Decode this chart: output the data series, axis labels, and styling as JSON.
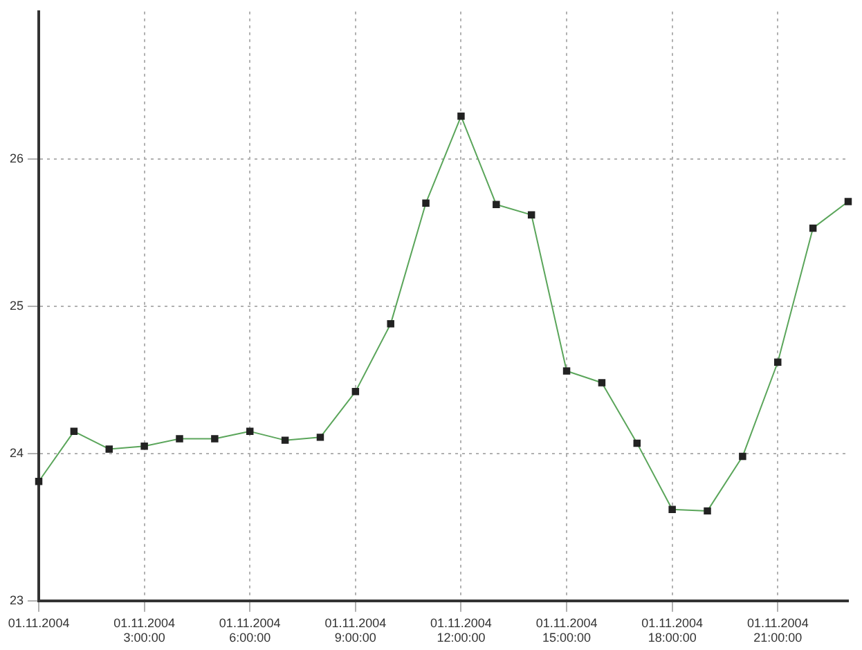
{
  "chart_data": {
    "type": "line",
    "categories": [
      "01.11.2004",
      null,
      null,
      "01.11.2004\n3:00:00",
      null,
      null,
      "01.11.2004\n6:00:00",
      null,
      null,
      "01.11.2004\n9:00:00",
      null,
      null,
      "01.11.2004\n12:00:00",
      null,
      null,
      "01.11.2004\n15:00:00",
      null,
      null,
      "01.11.2004\n18:00:00",
      null,
      null,
      "01.11.2004\n21:00:00",
      null,
      null
    ],
    "series": [
      {
        "color": "#5aa55a",
        "values": [
          23.81,
          24.15,
          24.03,
          24.05,
          24.1,
          24.1,
          24.15,
          24.09,
          24.11,
          24.42,
          24.88,
          25.7,
          26.29,
          25.69,
          25.62,
          24.56,
          24.48,
          24.07,
          23.62,
          23.61,
          23.98,
          24.62,
          25.53,
          25.71
        ]
      }
    ],
    "ylim": [
      23,
      27
    ],
    "yticks": [
      23,
      24,
      25,
      26
    ],
    "grid": true,
    "legend": false,
    "marker": "square",
    "line_style": "solid"
  }
}
